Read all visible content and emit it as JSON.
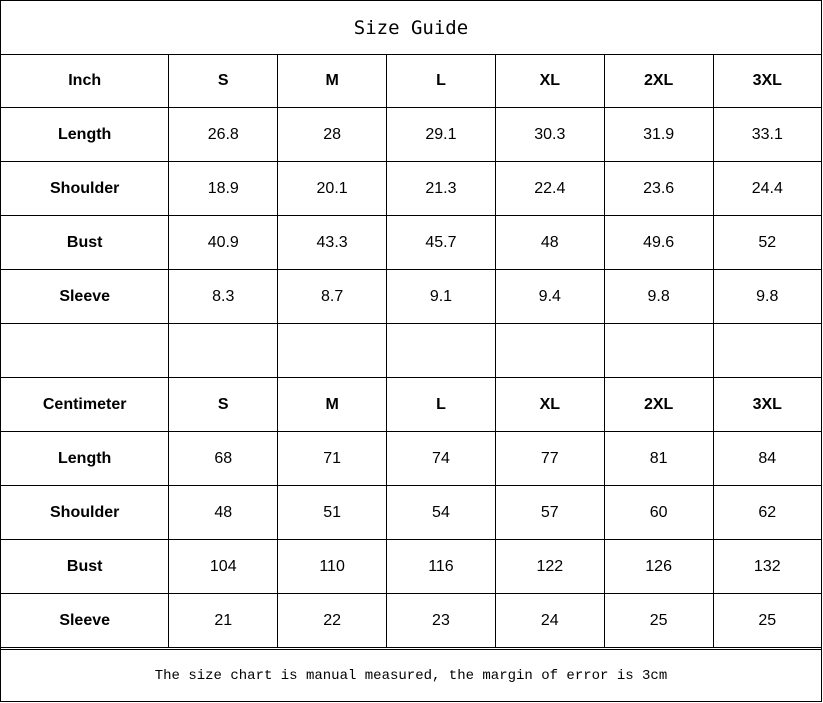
{
  "title": "Size Guide",
  "inch": {
    "header": [
      "Inch",
      "S",
      "M",
      "L",
      "XL",
      "2XL",
      "3XL"
    ],
    "rows": [
      [
        "Length",
        "26.8",
        "28",
        "29.1",
        "30.3",
        "31.9",
        "33.1"
      ],
      [
        "Shoulder",
        "18.9",
        "20.1",
        "21.3",
        "22.4",
        "23.6",
        "24.4"
      ],
      [
        "Bust",
        "40.9",
        "43.3",
        "45.7",
        "48",
        "49.6",
        "52"
      ],
      [
        "Sleeve",
        "8.3",
        "8.7",
        "9.1",
        "9.4",
        "9.8",
        "9.8"
      ]
    ]
  },
  "centimeter": {
    "header": [
      "Centimeter",
      "S",
      "M",
      "L",
      "XL",
      "2XL",
      "3XL"
    ],
    "rows": [
      [
        "Length",
        "68",
        "71",
        "74",
        "77",
        "81",
        "84"
      ],
      [
        "Shoulder",
        "48",
        "51",
        "54",
        "57",
        "60",
        "62"
      ],
      [
        "Bust",
        "104",
        "110",
        "116",
        "122",
        "126",
        "132"
      ],
      [
        "Sleeve",
        "21",
        "22",
        "23",
        "24",
        "25",
        "25"
      ]
    ]
  },
  "footer": "The size chart is manual measured, the margin of error is 3cm"
}
